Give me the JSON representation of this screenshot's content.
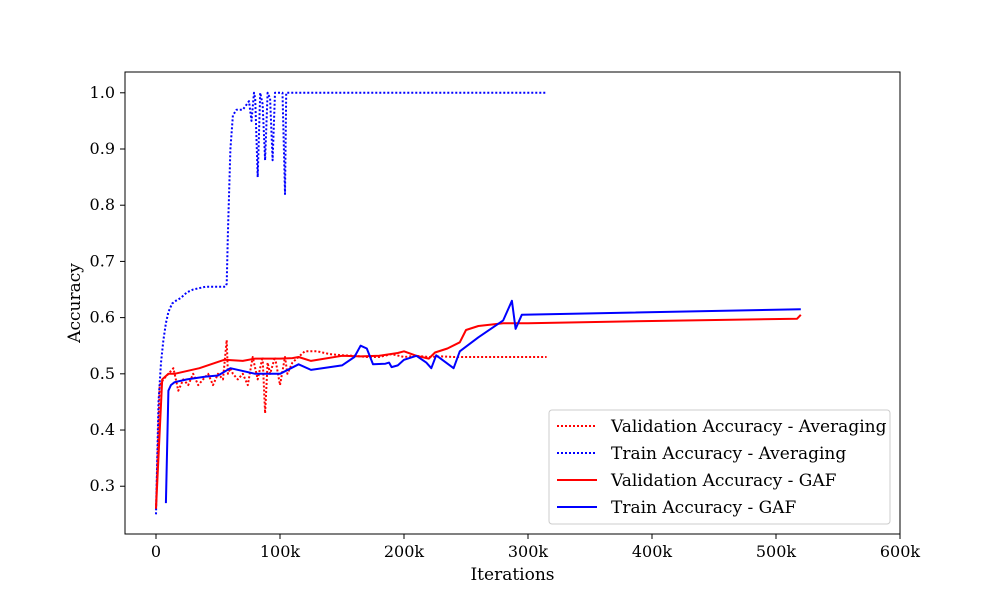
{
  "chart_data": {
    "type": "line",
    "title": "",
    "xlabel": "Iterations",
    "ylabel": "Accuracy",
    "xlim": [
      -25000,
      600000
    ],
    "ylim": [
      0.215,
      1.037
    ],
    "xticks": [
      0,
      100000,
      200000,
      300000,
      400000,
      500000,
      600000
    ],
    "xtick_labels": [
      "0",
      "100k",
      "200k",
      "300k",
      "400k",
      "500k",
      "600k"
    ],
    "yticks": [
      0.3,
      0.4,
      0.5,
      0.6,
      0.7,
      0.8,
      0.9,
      1.0
    ],
    "ytick_labels": [
      "0.3",
      "0.4",
      "0.5",
      "0.6",
      "0.7",
      "0.8",
      "0.9",
      "1.0"
    ],
    "grid": false,
    "legend_position": "lower-right",
    "series": [
      {
        "name": "Validation Accuracy - Averaging",
        "color": "#ff0000",
        "style": "dotted",
        "x": [
          0,
          3000,
          6000,
          10000,
          14000,
          18000,
          22000,
          26000,
          30000,
          34000,
          38000,
          42000,
          46000,
          50000,
          54000,
          57000,
          58000,
          60000,
          62000,
          66000,
          70000,
          74000,
          78000,
          82000,
          86000,
          88000,
          90000,
          92000,
          96000,
          100000,
          104000,
          106000,
          110000,
          120000,
          130000,
          140000,
          150000,
          160000,
          170000,
          180000,
          190000,
          200000,
          210000,
          220000,
          230000,
          240000,
          250000,
          260000,
          270000,
          280000,
          290000,
          300000,
          315000
        ],
        "y": [
          0.26,
          0.48,
          0.49,
          0.5,
          0.51,
          0.47,
          0.49,
          0.48,
          0.5,
          0.48,
          0.49,
          0.5,
          0.48,
          0.5,
          0.49,
          0.56,
          0.5,
          0.51,
          0.5,
          0.49,
          0.5,
          0.48,
          0.53,
          0.49,
          0.53,
          0.43,
          0.52,
          0.5,
          0.53,
          0.48,
          0.53,
          0.5,
          0.52,
          0.54,
          0.54,
          0.535,
          0.533,
          0.532,
          0.53,
          0.53,
          0.535,
          0.53,
          0.532,
          0.53,
          0.531,
          0.53,
          0.53,
          0.53,
          0.53,
          0.53,
          0.53,
          0.53,
          0.53
        ]
      },
      {
        "name": "Train Accuracy - Averaging",
        "color": "#0000ff",
        "style": "dotted",
        "x": [
          0,
          2000,
          4000,
          6000,
          8000,
          10000,
          13000,
          16000,
          20000,
          25000,
          30000,
          40000,
          50000,
          56000,
          57000,
          58000,
          60000,
          62000,
          65000,
          70000,
          75000,
          77000,
          79000,
          80000,
          82000,
          84000,
          86000,
          88000,
          90000,
          92000,
          94000,
          96000,
          98000,
          100000,
          102000,
          104000,
          105000,
          107000,
          110000,
          120000,
          150000,
          200000,
          250000,
          300000,
          315000
        ],
        "y": [
          0.25,
          0.45,
          0.52,
          0.56,
          0.59,
          0.61,
          0.625,
          0.63,
          0.635,
          0.645,
          0.65,
          0.655,
          0.655,
          0.655,
          0.66,
          0.75,
          0.9,
          0.96,
          0.97,
          0.97,
          0.985,
          0.95,
          1.0,
          0.99,
          0.85,
          1.0,
          0.98,
          0.88,
          1.0,
          0.99,
          0.88,
          1.0,
          1.0,
          1.0,
          1.0,
          0.82,
          1.0,
          1.0,
          1.0,
          1.0,
          1.0,
          1.0,
          1.0,
          1.0,
          1.0
        ]
      },
      {
        "name": "Validation Accuracy - GAF",
        "color": "#ff0000",
        "style": "solid",
        "x": [
          0,
          5000,
          10000,
          15000,
          35000,
          55000,
          70000,
          80000,
          90000,
          100000,
          110000,
          115000,
          125000,
          150000,
          165000,
          180000,
          195000,
          200000,
          210000,
          220000,
          225000,
          235000,
          245000,
          250000,
          260000,
          280000,
          300000,
          400000,
          517000,
          520000
        ],
        "y": [
          0.26,
          0.49,
          0.5,
          0.5,
          0.51,
          0.525,
          0.523,
          0.527,
          0.527,
          0.527,
          0.528,
          0.53,
          0.523,
          0.532,
          0.531,
          0.532,
          0.537,
          0.54,
          0.532,
          0.527,
          0.538,
          0.545,
          0.556,
          0.578,
          0.585,
          0.59,
          0.59,
          0.594,
          0.598,
          0.605
        ]
      },
      {
        "name": "Train Accuracy - GAF",
        "color": "#0000ff",
        "style": "solid",
        "x": [
          8000,
          10000,
          12000,
          15000,
          25000,
          40000,
          50000,
          60000,
          80000,
          100000,
          115000,
          125000,
          150000,
          160000,
          165000,
          170000,
          175000,
          185000,
          188000,
          190000,
          195000,
          200000,
          210000,
          218000,
          222000,
          226000,
          240000,
          245000,
          260000,
          280000,
          287000,
          290000,
          295000,
          520000
        ],
        "y": [
          0.27,
          0.47,
          0.48,
          0.485,
          0.49,
          0.495,
          0.497,
          0.51,
          0.5,
          0.5,
          0.517,
          0.507,
          0.515,
          0.53,
          0.55,
          0.545,
          0.517,
          0.518,
          0.52,
          0.512,
          0.515,
          0.525,
          0.532,
          0.52,
          0.51,
          0.533,
          0.51,
          0.54,
          0.565,
          0.595,
          0.63,
          0.58,
          0.605,
          0.615
        ]
      }
    ]
  }
}
